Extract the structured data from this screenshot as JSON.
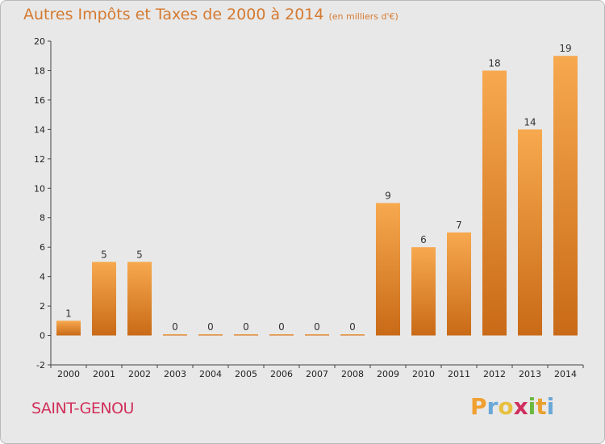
{
  "header": {
    "title": "Autres Impôts et Taxes de 2000 à 2014",
    "unit": "(en milliers d'€)"
  },
  "footer": {
    "commune": "SAINT-GENOU",
    "logo_letters": [
      "P",
      "r",
      "o",
      "x",
      "i",
      "t",
      "i"
    ],
    "logo_colors": [
      "#f0a030",
      "#6aa8d8",
      "#e8c040",
      "#d03060",
      "#6ab840",
      "#e8a030",
      "#6aa8d8"
    ]
  },
  "colors": {
    "bar_top": "#f7a94f",
    "bar_bottom": "#c96a17",
    "axis": "#444444",
    "background": "#e8e8e8"
  },
  "chart_data": {
    "type": "bar",
    "categories": [
      "2000",
      "2001",
      "2002",
      "2003",
      "2004",
      "2005",
      "2006",
      "2007",
      "2008",
      "2009",
      "2010",
      "2011",
      "2012",
      "2013",
      "2014"
    ],
    "values": [
      1,
      5,
      5,
      0,
      0,
      0,
      0,
      0,
      0,
      9,
      6,
      7,
      18,
      14,
      19
    ],
    "data_labels": [
      "1",
      "5",
      "5",
      "0",
      "0",
      "0",
      "0",
      "0",
      "0",
      "9",
      "6",
      "7",
      "18",
      "14",
      "19"
    ],
    "yticks": [
      -2,
      0,
      2,
      4,
      6,
      8,
      10,
      12,
      14,
      16,
      18,
      20
    ],
    "ylim": [
      -2,
      20
    ],
    "title": "Autres Impôts et Taxes de 2000 à 2014",
    "xlabel": "",
    "ylabel": "",
    "grid": false,
    "legend": "none"
  }
}
